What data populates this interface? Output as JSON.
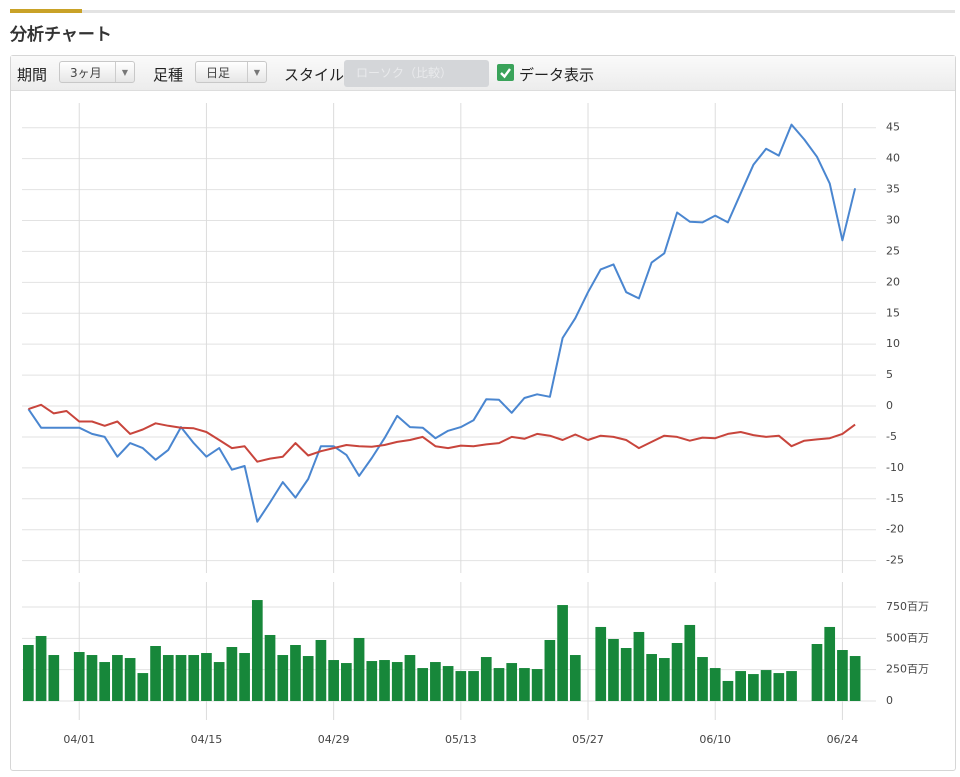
{
  "header": {
    "title": "分析チャート"
  },
  "toolbar": {
    "period_label": "期間",
    "period_value": "3ヶ月",
    "bar_label": "足種",
    "bar_value": "日足",
    "style_label": "スタイル",
    "style_value": "ローソク（比較）",
    "data_toggle": "データ表示"
  },
  "chart_data": [
    {
      "type": "line",
      "categories": [
        null,
        null,
        null,
        null,
        "04/01",
        null,
        null,
        null,
        null,
        null,
        null,
        null,
        null,
        null,
        "04/15",
        null,
        null,
        null,
        null,
        null,
        null,
        null,
        null,
        null,
        "04/29",
        null,
        null,
        null,
        null,
        null,
        null,
        null,
        null,
        null,
        "05/13",
        null,
        null,
        null,
        null,
        null,
        null,
        null,
        null,
        null,
        "05/27",
        null,
        null,
        null,
        null,
        null,
        null,
        null,
        null,
        null,
        "06/10",
        null,
        null,
        null,
        null,
        null,
        null,
        null,
        null,
        null,
        "06/24",
        null
      ],
      "series": [
        {
          "color": "#4a86d0",
          "values": [
            -0.5,
            -3.5,
            -3.5,
            -3.5,
            -3.5,
            -4.5,
            -5,
            -8.2,
            -6,
            -6.8,
            -8.7,
            -7.1,
            -3.4,
            -6,
            -8.2,
            -6.8,
            -10.3,
            -9.7,
            -18.7,
            -15.6,
            -12.3,
            -14.8,
            -11.8,
            -6.5,
            -6.5,
            -7.9,
            -11.3,
            -8.4,
            -5.2,
            -1.6,
            -3.4,
            -3.5,
            -5.2,
            -4,
            -3.4,
            -2.3,
            1.1,
            1,
            -1.1,
            1.3,
            1.9,
            1.5,
            11,
            14.2,
            18.4,
            22.1,
            22.9,
            18.4,
            17.4,
            23.2,
            24.7,
            31.3,
            29.8,
            29.7,
            30.8,
            29.7,
            34.4,
            39,
            41.6,
            40.5,
            45.5,
            43.1,
            40.3,
            36,
            26.8,
            35.2
          ]
        },
        {
          "color": "#c8453c",
          "values": [
            -0.5,
            0.2,
            -1.2,
            -0.8,
            -2.5,
            -2.5,
            -3.2,
            -2.5,
            -4.5,
            -3.8,
            -2.8,
            -3.2,
            -3.5,
            -3.6,
            -4.2,
            -5.5,
            -6.8,
            -6.5,
            -9,
            -8.5,
            -8.2,
            -6,
            -8,
            -7.3,
            -6.8,
            -6.3,
            -6.5,
            -6.6,
            -6.3,
            -5.8,
            -5.5,
            -5,
            -6.5,
            -6.8,
            -6.4,
            -6.5,
            -6.2,
            -6,
            -5,
            -5.3,
            -4.5,
            -4.8,
            -5.5,
            -4.6,
            -5.5,
            -4.8,
            -5,
            -5.5,
            -6.8,
            -5.8,
            -4.8,
            -5,
            -5.6,
            -5.1,
            -5.2,
            -4.5,
            -4.2,
            -4.7,
            -5,
            -4.8,
            -6.5,
            -5.6,
            -5.4,
            -5.2,
            -4.5,
            -3
          ]
        }
      ],
      "ylim": [
        -27,
        49
      ],
      "yticks": [
        45,
        40,
        35,
        30,
        25,
        20,
        15,
        10,
        5,
        0,
        -5,
        -10,
        -15,
        -20,
        -25
      ],
      "grid": true
    },
    {
      "type": "bar",
      "categories": [
        null,
        null,
        null,
        null,
        "04/01",
        null,
        null,
        null,
        null,
        null,
        null,
        null,
        null,
        null,
        "04/15",
        null,
        null,
        null,
        null,
        null,
        null,
        null,
        null,
        null,
        "04/29",
        null,
        null,
        null,
        null,
        null,
        null,
        null,
        null,
        null,
        "05/13",
        null,
        null,
        null,
        null,
        null,
        null,
        null,
        null,
        null,
        "05/27",
        null,
        null,
        null,
        null,
        null,
        null,
        null,
        null,
        null,
        "06/10",
        null,
        null,
        null,
        null,
        null,
        null,
        null,
        null,
        null,
        "06/24",
        null
      ],
      "values": [
        447,
        519,
        367,
        null,
        391,
        367,
        311,
        367,
        343,
        223,
        439,
        367,
        367,
        367,
        383,
        311,
        431,
        383,
        806,
        527,
        367,
        447,
        359,
        487,
        327,
        303,
        503,
        319,
        327,
        311,
        367,
        263,
        311,
        279,
        239,
        239,
        351,
        263,
        303,
        263,
        255,
        487,
        766,
        367,
        null,
        591,
        495,
        423,
        551,
        375,
        343,
        463,
        607,
        351,
        263,
        160,
        239,
        215,
        247,
        223,
        239,
        null,
        455,
        591,
        407,
        359
      ],
      "color": "#17873a",
      "ylim": [
        -40,
        950
      ],
      "yticks": [
        {
          "value": 750,
          "label": "750百万"
        },
        {
          "value": 500,
          "label": "500百万"
        },
        {
          "value": 250,
          "label": "250百万"
        },
        0
      ],
      "grid": true
    }
  ]
}
